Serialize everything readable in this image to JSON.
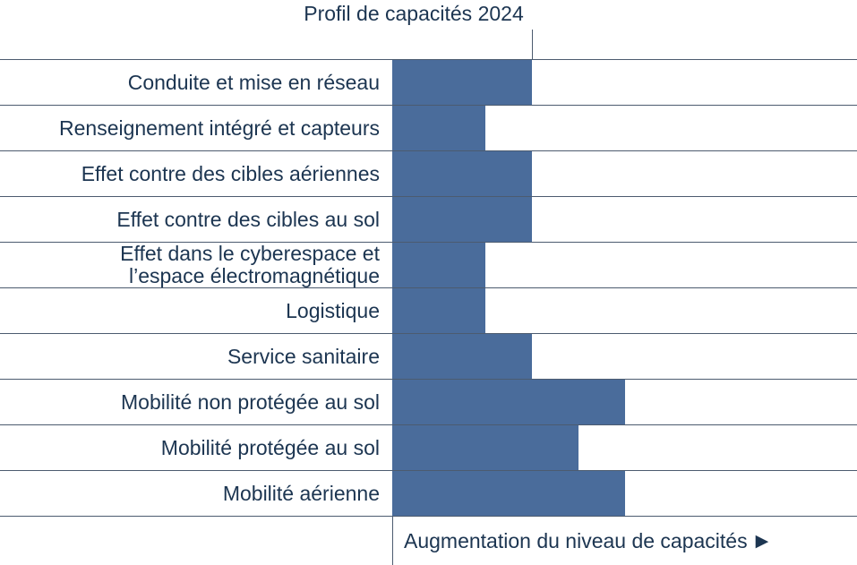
{
  "colors": {
    "bar": "#4A6C9B",
    "gridline": "#4C5B6F",
    "text": "#1C3551",
    "background": "#FFFFFF"
  },
  "chart_data": {
    "type": "bar",
    "orientation": "horizontal",
    "title": "Profil de capacités 2024",
    "categories": [
      "Conduite et mise en réseau",
      "Renseignement intégré et capteurs",
      "Effet contre des cibles aériennes",
      "Effet contre des cibles au sol",
      "Effet dans le cyberespace et\nl’espace électromagnétique",
      "Logistique",
      "Service sanitaire",
      "Mobilité non protégée au sol",
      "Mobilité protégée au sol",
      "Mobilité aérienne"
    ],
    "values": [
      3,
      2,
      3,
      3,
      2,
      2,
      3,
      5,
      4,
      5
    ],
    "xlim": [
      0,
      10
    ],
    "reference_line_x": 3,
    "xlabel": "Augmentation du niveau de capacités",
    "xlabel_arrow": "▶",
    "grid": true,
    "legend": false,
    "value_axis_ticks": []
  }
}
